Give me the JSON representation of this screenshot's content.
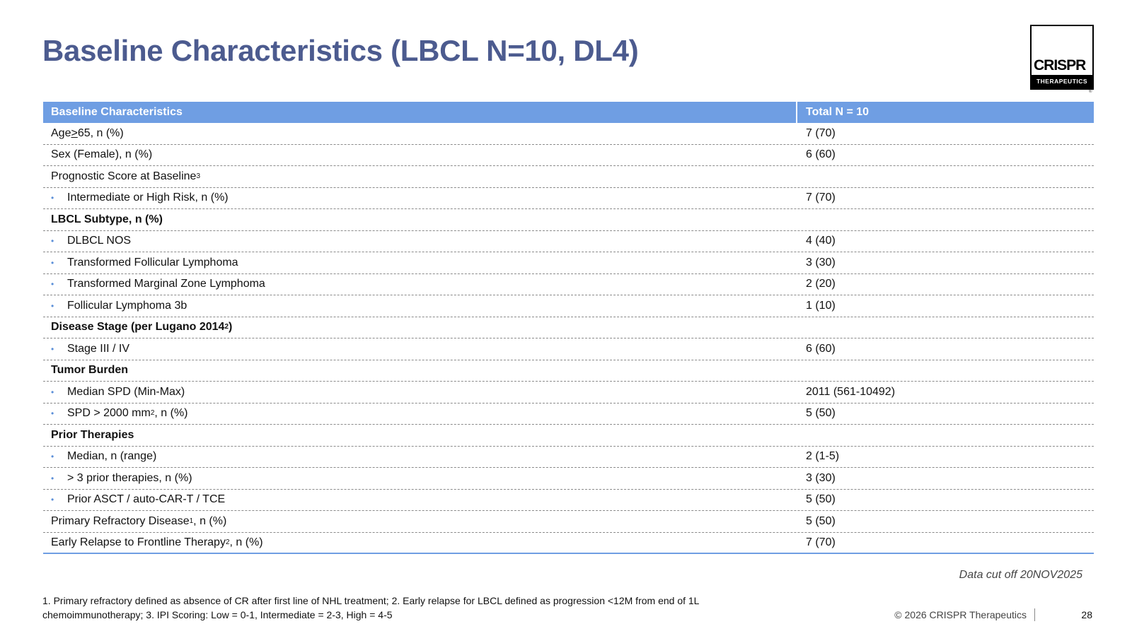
{
  "title": "Baseline Characteristics (LBCL N=10, DL4)",
  "logo": {
    "word": "CRISPR",
    "sub": "THERAPEUTICS",
    "reg": "®"
  },
  "table": {
    "headers": [
      "Baseline Characteristics",
      "Total N = 10"
    ],
    "rows": [
      {
        "label_pre": "Age ",
        "label_ul": ">",
        "label_post": " 65, n (%)",
        "value": "7 (70)"
      },
      {
        "label": "Sex (Female), n (%)",
        "value": "6 (60)"
      },
      {
        "label": "Prognostic Score at Baseline",
        "sup": "3",
        "value": ""
      },
      {
        "label": "Intermediate or High Risk, n (%)",
        "value": "7 (70)",
        "bullet": "•"
      },
      {
        "label": "LBCL Subtype, n (%)",
        "value": ""
      },
      {
        "label": "DLBCL NOS",
        "value": "4 (40)",
        "bullet": "•"
      },
      {
        "label": "Transformed Follicular Lymphoma",
        "value": "3 (30)",
        "bullet": "•"
      },
      {
        "label": "Transformed Marginal Zone Lymphoma",
        "value": "2 (20)",
        "bullet": "•"
      },
      {
        "label": "Follicular Lymphoma 3b",
        "value": "1 (10)",
        "bullet": "•"
      },
      {
        "label": "Disease Stage (per Lugano 2014",
        "sup": "2",
        "label_post": ")",
        "value": ""
      },
      {
        "label": "Stage III / IV",
        "value": "6 (60)",
        "bullet": "•"
      },
      {
        "label": "Tumor Burden",
        "value": ""
      },
      {
        "label": "Median SPD (Min-Max)",
        "value": "2011 (561-10492)",
        "bullet": "•"
      },
      {
        "label": "SPD > 2000 mm",
        "sup": "2",
        "label_post": ", n (%)",
        "value": "5 (50)",
        "bullet": "•"
      },
      {
        "label": "Prior Therapies",
        "value": ""
      },
      {
        "label": "Median, n (range)",
        "value": "2 (1-5)",
        "bullet": "•"
      },
      {
        "label": "> 3 prior therapies, n (%)",
        "value": "3 (30)",
        "bullet": "•"
      },
      {
        "label": "Prior ASCT / auto-CAR-T / TCE",
        "value": "5 (50)",
        "bullet": "•"
      },
      {
        "label": "Primary Refractory Disease",
        "sup": "1",
        "label_post": ", n (%)",
        "value": "5 (50)"
      },
      {
        "label": "Early Relapse to Frontline Therapy",
        "sup": "2",
        "label_post": ", n (%)",
        "value": "7 (70)"
      }
    ]
  },
  "data_cutoff": "Data cut off 20NOV2025",
  "footnote": "1. Primary refractory defined as absence of CR after first line of NHL treatment; 2. Early relapse for LBCL defined as progression <12M from end of 1L chemoimmunotherapy; 3. IPI Scoring: Low = 0-1, Intermediate = 2-3, High = 4-5",
  "copyright": "© 2026 CRISPR Therapeutics",
  "page_number": "28",
  "colors": {
    "title": "#4c5b8f",
    "header_bg": "#6f9ee3",
    "bullet": "#5b8fd8"
  }
}
